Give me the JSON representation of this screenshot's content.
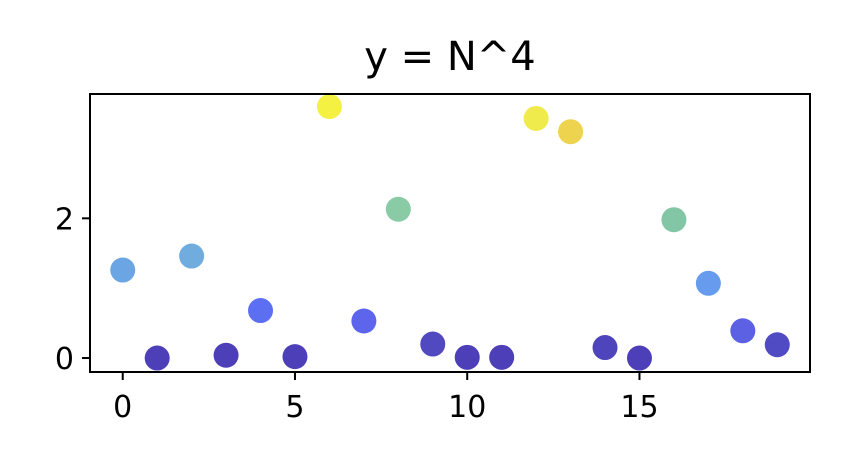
{
  "chart_data": {
    "type": "scatter",
    "title": "y = N^4",
    "xlabel": "",
    "ylabel": "",
    "xlim": [
      -0.95,
      19.95
    ],
    "ylim": [
      -0.2,
      3.78
    ],
    "xticks": [
      0,
      5,
      10,
      15
    ],
    "xtick_labels": [
      "0",
      "5",
      "10",
      "15"
    ],
    "yticks": [
      0,
      2
    ],
    "ytick_labels": [
      "0",
      "2"
    ],
    "grid": false,
    "colormap": "plasma-like (dark blue to yellow by value)",
    "series": [
      {
        "x": [
          0,
          1,
          2,
          3,
          4,
          5,
          6,
          7,
          8,
          9,
          10,
          11,
          12,
          13,
          14,
          15,
          16,
          17,
          18,
          19
        ],
        "y": [
          1.26,
          0.0,
          1.46,
          0.04,
          0.68,
          0.02,
          3.6,
          0.53,
          2.13,
          0.2,
          0.01,
          0.01,
          3.43,
          3.24,
          0.15,
          0.0,
          1.98,
          1.07,
          0.39,
          0.19
        ],
        "colors": [
          "#5b9be0",
          "#3a2ab0",
          "#62a3dc",
          "#3a2ab0",
          "#4a5ef0",
          "#3a2ab0",
          "#f4ef2e",
          "#4a54ea",
          "#7cc59a",
          "#3d35b8",
          "#3a2ab0",
          "#3a2ab0",
          "#eee93a",
          "#ecce3c",
          "#3b31b5",
          "#3a2ab0",
          "#76c09b",
          "#5590ec",
          "#4a4fe0",
          "#3d37bd"
        ]
      }
    ]
  }
}
